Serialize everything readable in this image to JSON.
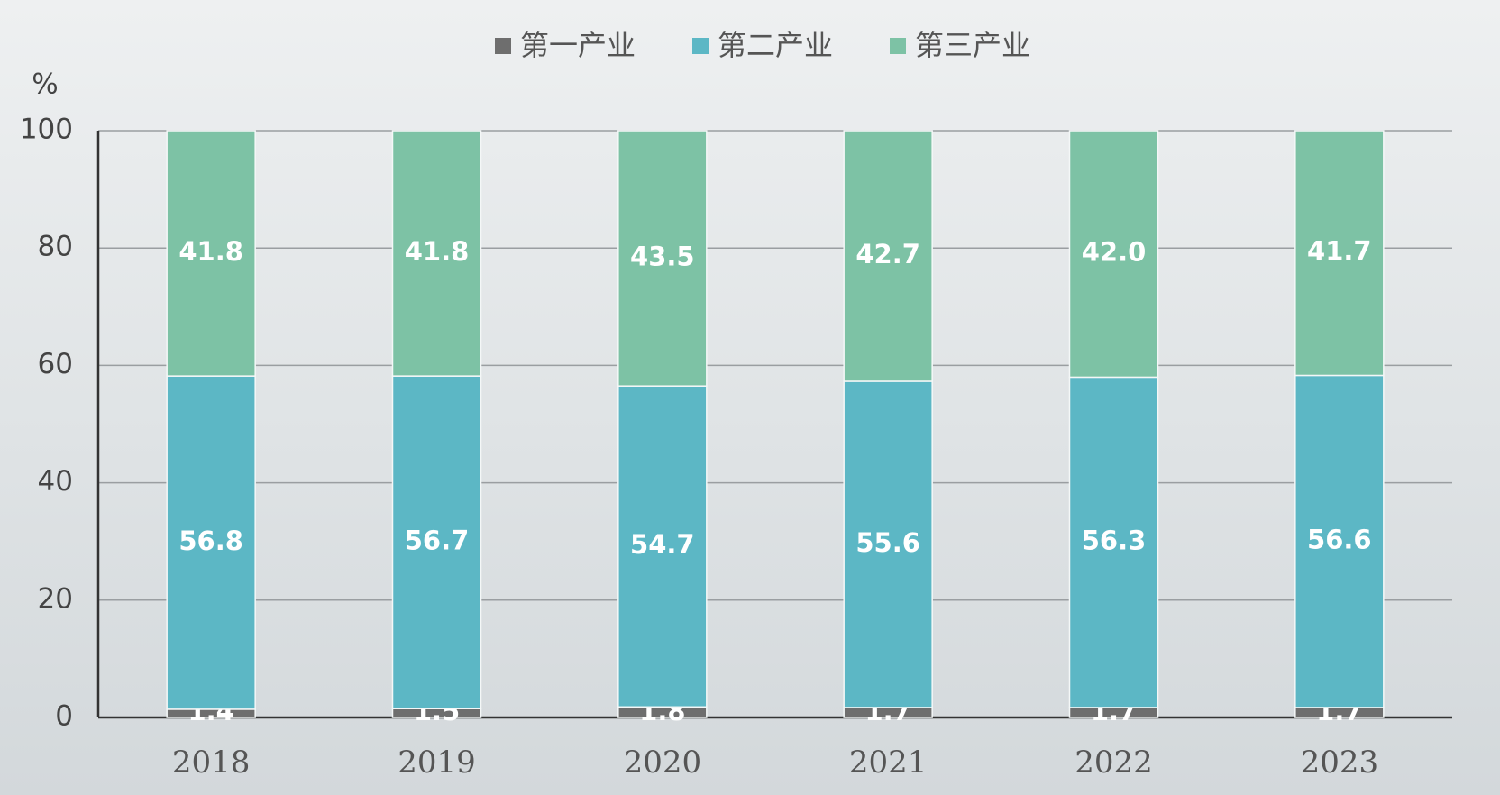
{
  "chart_data": {
    "type": "stacked_bar",
    "y_label": "%",
    "categories": [
      "2018",
      "2019",
      "2020",
      "2021",
      "2022",
      "2023"
    ],
    "series": [
      {
        "name": "第一产业",
        "color": "#6e6e6e",
        "values": [
          1.4,
          1.5,
          1.8,
          1.7,
          1.7,
          1.7
        ]
      },
      {
        "name": "第二产业",
        "color": "#5cb7c5",
        "values": [
          56.8,
          56.7,
          54.7,
          55.6,
          56.3,
          56.6
        ]
      },
      {
        "name": "第三产业",
        "color": "#7dc2a5",
        "values": [
          41.8,
          41.8,
          43.5,
          42.7,
          42.0,
          41.7
        ],
        "value_labels": [
          "41.8",
          "41.8",
          "43.5",
          "42.7",
          "42.0",
          "41.7"
        ]
      }
    ],
    "ylim": [
      0,
      100
    ],
    "yticks": [
      0,
      20,
      40,
      60,
      80,
      100
    ],
    "grid": true,
    "legend": "top"
  }
}
